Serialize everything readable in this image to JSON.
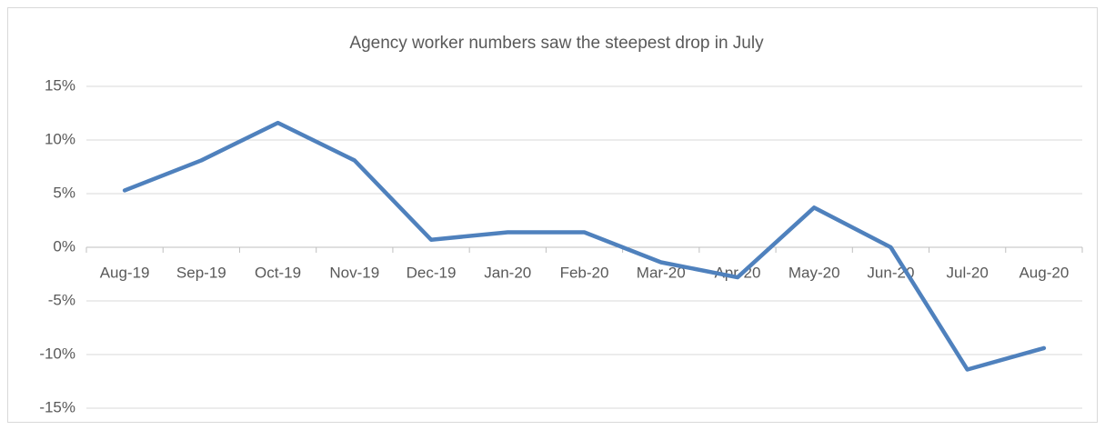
{
  "chart_data": {
    "type": "line",
    "title": "Agency worker numbers saw the steepest drop in July",
    "categories": [
      "Aug-19",
      "Sep-19",
      "Oct-19",
      "Nov-19",
      "Dec-19",
      "Jan-20",
      "Feb-20",
      "Mar-20",
      "Apr-20",
      "May-20",
      "Jun-20",
      "Jul-20",
      "Aug-20"
    ],
    "series": [
      {
        "name": null,
        "color": "#4f81bd",
        "values": [
          5.3,
          8.1,
          11.6,
          8.1,
          0.7,
          1.4,
          1.4,
          -1.4,
          -2.8,
          3.7,
          0,
          -11.4,
          -9.4
        ]
      }
    ],
    "ylim": [
      -15,
      15
    ],
    "yticks": [
      {
        "value": -15,
        "label": "-15%"
      },
      {
        "value": -10,
        "label": "-10%"
      },
      {
        "value": -5,
        "label": "-5%"
      },
      {
        "value": 0,
        "label": "0%"
      },
      {
        "value": 5,
        "label": "5%"
      },
      {
        "value": 10,
        "label": "10%"
      },
      {
        "value": 15,
        "label": "15%"
      }
    ],
    "grid": true
  }
}
